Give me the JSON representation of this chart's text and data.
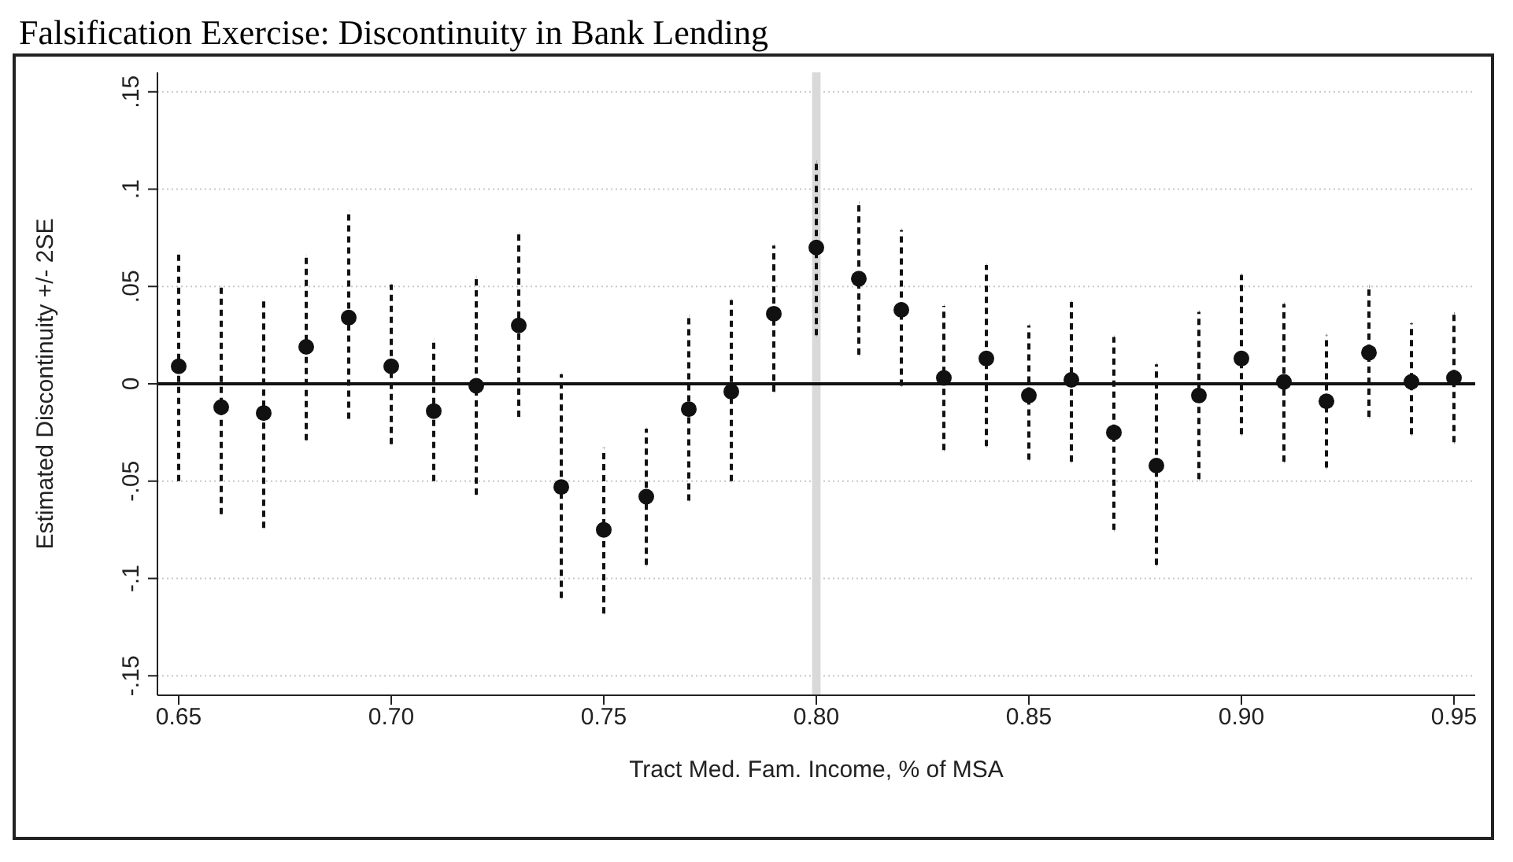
{
  "chart_data": {
    "type": "scatter",
    "title": "Falsification Exercise: Discontinuity in Bank Lending",
    "xlabel": "Tract Med. Fam. Income, % of MSA",
    "ylabel": "Estimated Discontinuity +/- 2SE",
    "x": [
      0.65,
      0.66,
      0.67,
      0.68,
      0.69,
      0.7,
      0.71,
      0.72,
      0.73,
      0.74,
      0.75,
      0.76,
      0.77,
      0.78,
      0.79,
      0.8,
      0.81,
      0.82,
      0.83,
      0.84,
      0.85,
      0.86,
      0.87,
      0.88,
      0.89,
      0.9,
      0.91,
      0.92,
      0.93,
      0.94,
      0.95
    ],
    "series": [
      {
        "color": "#111111",
        "values": [
          0.009,
          -0.012,
          -0.015,
          0.019,
          0.034,
          0.009,
          -0.014,
          -0.001,
          0.03,
          -0.053,
          -0.075,
          -0.058,
          -0.013,
          -0.004,
          0.036,
          0.07,
          0.054,
          0.038,
          0.003,
          0.013,
          -0.006,
          0.002,
          -0.025,
          -0.042,
          -0.006,
          0.013,
          0.001,
          -0.009,
          0.016,
          0.001,
          0.003
        ],
        "errors": [
          [
            -0.05,
            0.068
          ],
          [
            -0.067,
            0.05
          ],
          [
            -0.074,
            0.044
          ],
          [
            -0.029,
            0.066
          ],
          [
            -0.018,
            0.089
          ],
          [
            -0.031,
            0.051
          ],
          [
            -0.05,
            0.023
          ],
          [
            -0.057,
            0.055
          ],
          [
            -0.017,
            0.077
          ],
          [
            -0.11,
            0.005
          ],
          [
            -0.118,
            -0.033
          ],
          [
            -0.093,
            -0.023
          ],
          [
            -0.06,
            0.035
          ],
          [
            -0.05,
            0.043
          ],
          [
            -0.004,
            0.071
          ],
          [
            0.025,
            0.114
          ],
          [
            0.015,
            0.093
          ],
          [
            -0.001,
            0.079
          ],
          [
            -0.034,
            0.04
          ],
          [
            -0.032,
            0.061
          ],
          [
            -0.039,
            0.03
          ],
          [
            -0.04,
            0.042
          ],
          [
            -0.075,
            0.024
          ],
          [
            -0.093,
            0.01
          ],
          [
            -0.049,
            0.037
          ],
          [
            -0.026,
            0.056
          ],
          [
            -0.04,
            0.041
          ],
          [
            -0.043,
            0.025
          ],
          [
            -0.017,
            0.05
          ],
          [
            -0.026,
            0.031
          ],
          [
            -0.03,
            0.036
          ]
        ]
      }
    ],
    "xlim": [
      0.645,
      0.955
    ],
    "xticks": [
      0.65,
      {
        "value": 0.7,
        "label": "0.70"
      },
      0.75,
      {
        "value": 0.8,
        "label": "0.80"
      },
      0.85,
      {
        "value": 0.9,
        "label": "0.90"
      },
      0.95
    ],
    "ylim": [
      -0.16,
      0.16
    ],
    "yticks": [
      {
        "value": -0.15,
        "label": "-.15"
      },
      {
        "value": -0.1,
        "label": "-.1"
      },
      {
        "value": -0.05,
        "label": "-.05"
      },
      0,
      {
        "value": 0.05,
        "label": ".05"
      },
      {
        "value": 0.1,
        "label": ".1"
      },
      {
        "value": 0.15,
        "label": ".15"
      }
    ],
    "ref_lines": [
      {
        "axis": "y",
        "value": 0,
        "color": "#111111",
        "line_style": "solid"
      }
    ],
    "bands": [
      {
        "axis": "x",
        "from": 0.799,
        "to": 0.801,
        "color": "#d9d9d9"
      }
    ],
    "grid": "y",
    "marker": "circle",
    "line_style": "dashed"
  }
}
